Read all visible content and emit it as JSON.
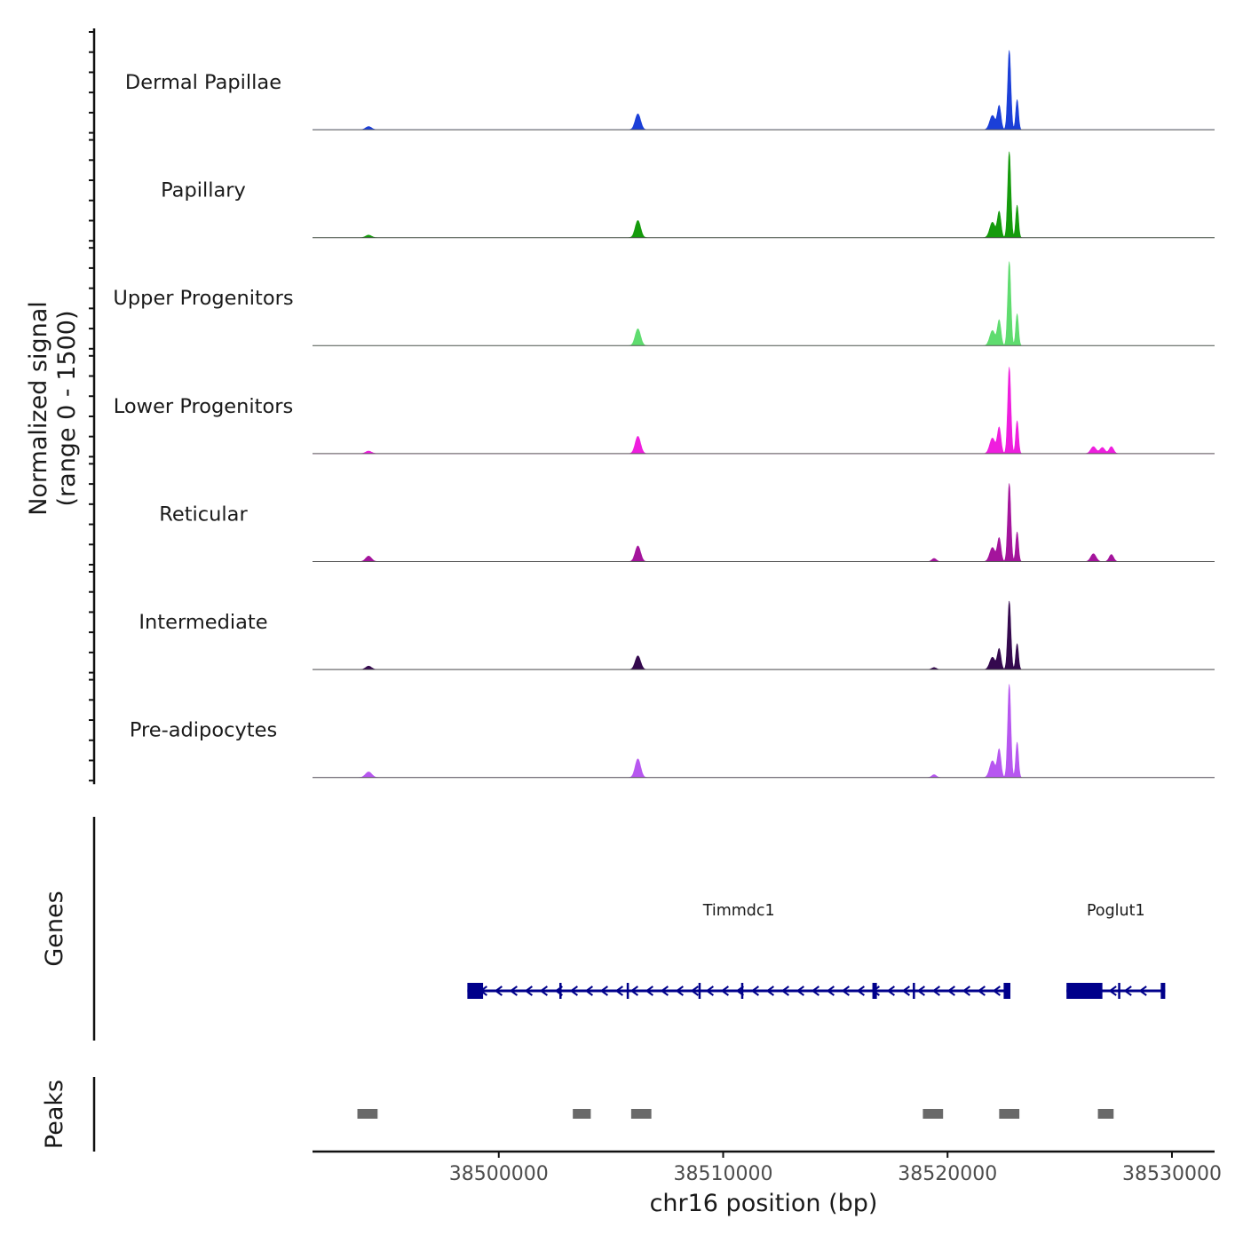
{
  "chart_data": {
    "type": "area",
    "title": "",
    "ylabel_line1": "Normalized signal",
    "ylabel_line2": "(range 0 - 1500)",
    "xlabel": "chr16 position (bp)",
    "xlim": [
      38491700,
      38531900
    ],
    "x_ticks": [
      38500000,
      38510000,
      38520000,
      38530000
    ],
    "x_tick_labels": [
      "38500000",
      "38510000",
      "38520000",
      "38530000"
    ],
    "y_range": [
      0,
      1500
    ],
    "signal_peaks": [
      {
        "center": 38506200,
        "width": 120,
        "relative_height": 0.2
      },
      {
        "center": 38522000,
        "width": 120,
        "relative_height": 0.18
      },
      {
        "center": 38522300,
        "width": 80,
        "relative_height": 0.3
      },
      {
        "center": 38522750,
        "width": 70,
        "relative_height": 1.0
      },
      {
        "center": 38523100,
        "width": 60,
        "relative_height": 0.38
      }
    ],
    "series": [
      {
        "name": "Dermal Papillae",
        "color": "#1b3fd8",
        "max_value": 1320,
        "extra_peaks": [
          {
            "center": 38494200,
            "width": 130,
            "relative_height": 0.04
          }
        ]
      },
      {
        "name": "Papillary",
        "color": "#159b0c",
        "max_value": 1430,
        "extra_peaks": [
          {
            "center": 38494200,
            "width": 130,
            "relative_height": 0.03
          }
        ]
      },
      {
        "name": "Upper Progenitors",
        "color": "#5fdc6f",
        "max_value": 1400,
        "extra_peaks": []
      },
      {
        "name": "Lower Progenitors",
        "color": "#ef1ede",
        "max_value": 1440,
        "extra_peaks": [
          {
            "center": 38494200,
            "width": 130,
            "relative_height": 0.03
          },
          {
            "center": 38526500,
            "width": 120,
            "relative_height": 0.08
          },
          {
            "center": 38526900,
            "width": 110,
            "relative_height": 0.07
          },
          {
            "center": 38527300,
            "width": 100,
            "relative_height": 0.08
          }
        ]
      },
      {
        "name": "Reticular",
        "color": "#a4149c",
        "max_value": 1300,
        "extra_peaks": [
          {
            "center": 38494200,
            "width": 130,
            "relative_height": 0.07
          },
          {
            "center": 38519400,
            "width": 100,
            "relative_height": 0.04
          },
          {
            "center": 38526500,
            "width": 120,
            "relative_height": 0.1
          },
          {
            "center": 38527300,
            "width": 100,
            "relative_height": 0.09
          }
        ]
      },
      {
        "name": "Intermediate",
        "color": "#34094e",
        "max_value": 1140,
        "extra_peaks": [
          {
            "center": 38494200,
            "width": 130,
            "relative_height": 0.05
          },
          {
            "center": 38519400,
            "width": 100,
            "relative_height": 0.03
          }
        ]
      },
      {
        "name": "Pre-adipocytes",
        "color": "#b757f0",
        "max_value": 1550,
        "extra_peaks": [
          {
            "center": 38494200,
            "width": 140,
            "relative_height": 0.06
          },
          {
            "center": 38519400,
            "width": 100,
            "relative_height": 0.03
          }
        ]
      }
    ],
    "genes_label": "Genes",
    "genes": [
      {
        "name": "Timmdc1",
        "start": 38498600,
        "end": 38522800,
        "strand": "-",
        "exons": [
          [
            38498600,
            38499300
          ],
          [
            38502700,
            38502750
          ],
          [
            38505700,
            38505750
          ],
          [
            38508900,
            38508950
          ],
          [
            38510800,
            38510850
          ],
          [
            38516650,
            38516850
          ],
          [
            38518450,
            38518550
          ],
          [
            38522500,
            38522800
          ]
        ]
      },
      {
        "name": "Poglut1",
        "start": 38525300,
        "end": 38529700,
        "strand": "-",
        "exons": [
          [
            38525300,
            38526900
          ],
          [
            38527600,
            38527650
          ],
          [
            38529500,
            38529700
          ]
        ]
      }
    ],
    "peaks_label": "Peaks",
    "peak_regions": [
      [
        38493700,
        38494600
      ],
      [
        38503300,
        38504100
      ],
      [
        38505900,
        38506800
      ],
      [
        38518900,
        38519800
      ],
      [
        38522300,
        38523200
      ],
      [
        38526700,
        38527400
      ]
    ],
    "colors": {
      "gene": "#00008b",
      "peak": "#696969",
      "baseline": "#555555",
      "axis": "#111111"
    }
  }
}
